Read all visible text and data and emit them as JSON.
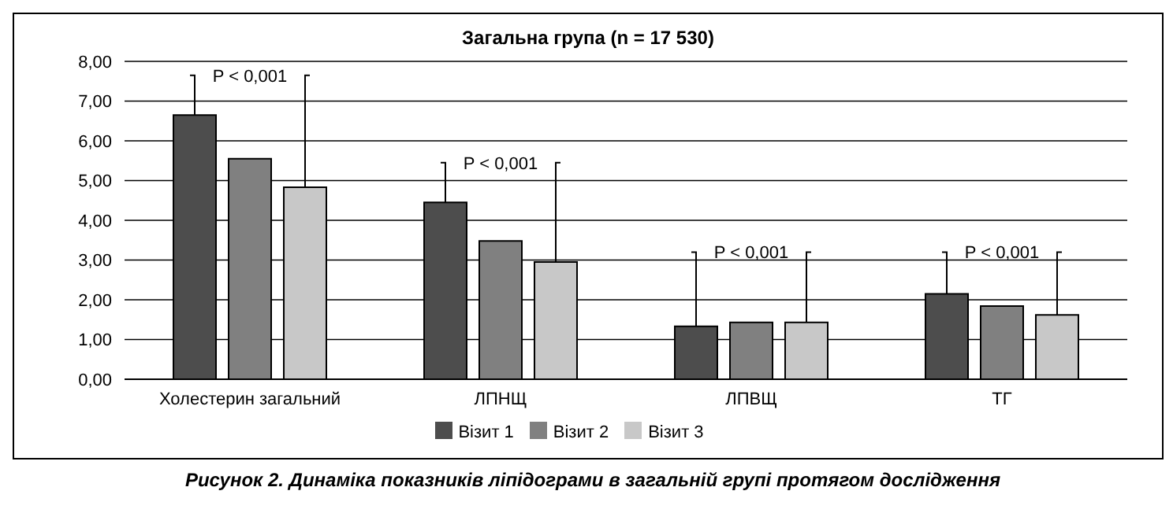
{
  "chart_data": {
    "type": "bar",
    "title": "Загальна група (n = 17 530)",
    "categories": [
      "Холестерин загальний",
      "ЛПНЩ",
      "ЛПВЩ",
      "ТГ"
    ],
    "series": [
      {
        "name": "Візит 1",
        "color": "#4d4d4d",
        "values": [
          6.65,
          4.45,
          1.33,
          2.15
        ]
      },
      {
        "name": "Візит 2",
        "color": "#808080",
        "values": [
          5.55,
          3.48,
          1.43,
          1.84
        ]
      },
      {
        "name": "Візит 3",
        "color": "#c8c8c8",
        "values": [
          4.83,
          2.95,
          1.43,
          1.62
        ]
      }
    ],
    "ylim": [
      0,
      8
    ],
    "yticks": [
      {
        "value": 0,
        "label": "0,00"
      },
      {
        "value": 1,
        "label": "1,00"
      },
      {
        "value": 2,
        "label": "2,00"
      },
      {
        "value": 3,
        "label": "3,00"
      },
      {
        "value": 4,
        "label": "4,00"
      },
      {
        "value": 5,
        "label": "5,00"
      },
      {
        "value": 6,
        "label": "6,00"
      },
      {
        "value": 7,
        "label": "7,00"
      },
      {
        "value": 8,
        "label": "8,00"
      }
    ],
    "grid": "y",
    "legend": "bottom",
    "annotations": [
      "P < 0,001",
      "P < 0,001",
      "P < 0,001",
      "P < 0,001",
      "Рисунок 2. Динаміка показників ліпідограми в загальній групі протягом дослідження"
    ]
  }
}
